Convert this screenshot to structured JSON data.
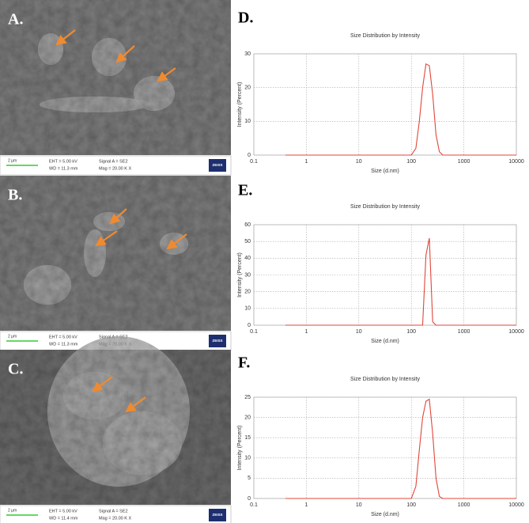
{
  "panels": [
    {
      "label": "A.",
      "scale": "2 µm",
      "eht": "EHT = 5.00 kV",
      "wd": "WD = 11.3 mm",
      "signal": "Signal A = SE2",
      "mag": "Mag = 20.00 K X",
      "logo": "ZEISS"
    },
    {
      "label": "B.",
      "scale": "2 µm",
      "eht": "EHT = 5.00 kV",
      "wd": "WD = 11.3 mm",
      "signal": "Signal A = SE2",
      "mag": "Mag = 20.00 K X",
      "logo": "ZEISS"
    },
    {
      "label": "C.",
      "scale": "2 µm",
      "eht": "EHT = 5.00 kV",
      "wd": "WD = 11.4 mm",
      "signal": "Signal A = SE2",
      "mag": "Mag = 20.00 K X",
      "logo": "ZEISS"
    }
  ],
  "chart_data": [
    {
      "type": "line",
      "label": "D.",
      "title": "Size Distribution by Intensity",
      "x_label": "Size (d.nm)",
      "y_label": "Intensity (Percent)",
      "x_scale": "log",
      "grid": true,
      "color": "#e0463a",
      "x": [
        0.4,
        100,
        122,
        142,
        164,
        190,
        220,
        255,
        295,
        342,
        396,
        10000
      ],
      "values": [
        0,
        0,
        2,
        10,
        20,
        27,
        26.5,
        18,
        6,
        1,
        0,
        0
      ],
      "xlim": [
        0.1,
        10000
      ],
      "xticks": [
        0.1,
        1,
        10,
        100,
        1000,
        10000
      ],
      "ylim": [
        0,
        30
      ],
      "yticks": [
        0,
        10,
        20,
        30
      ]
    },
    {
      "type": "line",
      "label": "E.",
      "title": "Size Distribution by Intensity",
      "x_label": "Size (d.nm)",
      "y_label": "Intensity (Percent)",
      "x_scale": "log",
      "grid": true,
      "color": "#e0463a",
      "x": [
        0.4,
        164,
        190,
        220,
        255,
        295,
        10000
      ],
      "values": [
        0,
        0,
        42,
        52,
        2,
        0,
        0
      ],
      "xlim": [
        0.1,
        10000
      ],
      "xticks": [
        0.1,
        1,
        10,
        100,
        1000,
        10000
      ],
      "ylim": [
        0,
        60
      ],
      "yticks": [
        0,
        10,
        20,
        30,
        40,
        50,
        60
      ]
    },
    {
      "type": "line",
      "label": "F.",
      "title": "Size Distribution by Intensity",
      "x_label": "Size (d.nm)",
      "y_label": "Intensity (Percent)",
      "x_scale": "log",
      "grid": true,
      "color": "#e0463a",
      "x": [
        0.4,
        100,
        122,
        142,
        164,
        190,
        220,
        255,
        295,
        342,
        396,
        10000
      ],
      "values": [
        0,
        0,
        3,
        12,
        20,
        24,
        24.5,
        16,
        5,
        0.5,
        0,
        0
      ],
      "xlim": [
        0.1,
        10000
      ],
      "xticks": [
        0.1,
        1,
        10,
        100,
        1000,
        10000
      ],
      "ylim": [
        0,
        25
      ],
      "yticks": [
        0,
        5,
        10,
        15,
        20,
        25
      ]
    }
  ]
}
